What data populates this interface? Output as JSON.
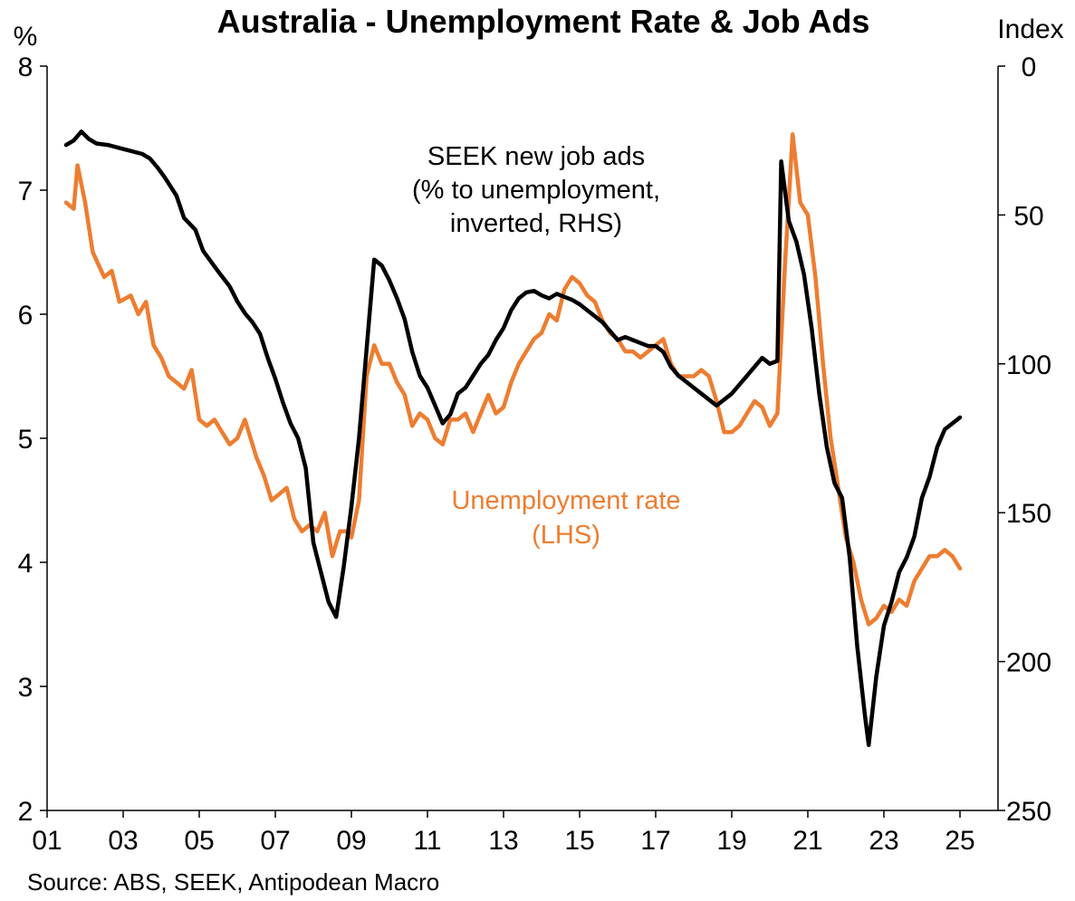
{
  "chart_data": {
    "type": "line",
    "title": "Australia - Unemployment Rate & Job Ads",
    "y_left_unit": "%",
    "y_right_unit": "Index",
    "source": "Source: ABS, SEEK, Antipodean Macro",
    "x_ticks": [
      "01",
      "03",
      "05",
      "07",
      "09",
      "11",
      "13",
      "15",
      "17",
      "19",
      "21",
      "23",
      "25"
    ],
    "x_range": [
      2001.0,
      2026.0
    ],
    "y_left": {
      "min": 2,
      "max": 8,
      "ticks": [
        2,
        3,
        4,
        5,
        6,
        7,
        8
      ]
    },
    "y_right": {
      "min": 0,
      "max": 250,
      "inverted": true,
      "ticks": [
        0,
        50,
        100,
        150,
        200,
        250
      ]
    },
    "annotations": {
      "seek": [
        "SEEK new job ads",
        "(% to unemployment,",
        "inverted, RHS)"
      ],
      "unemployment": [
        "Unemployment rate",
        "(LHS)"
      ]
    },
    "grid": false,
    "series": [
      {
        "name": "Unemployment rate (LHS)",
        "axis": "left",
        "color": "#ED7D31",
        "points": [
          [
            2001.5,
            6.9
          ],
          [
            2001.7,
            6.85
          ],
          [
            2001.8,
            7.2
          ],
          [
            2002.0,
            6.9
          ],
          [
            2002.2,
            6.5
          ],
          [
            2002.5,
            6.3
          ],
          [
            2002.7,
            6.35
          ],
          [
            2002.9,
            6.1
          ],
          [
            2003.2,
            6.15
          ],
          [
            2003.4,
            6.0
          ],
          [
            2003.6,
            6.1
          ],
          [
            2003.8,
            5.75
          ],
          [
            2004.0,
            5.65
          ],
          [
            2004.2,
            5.5
          ],
          [
            2004.4,
            5.45
          ],
          [
            2004.6,
            5.4
          ],
          [
            2004.8,
            5.55
          ],
          [
            2005.0,
            5.15
          ],
          [
            2005.2,
            5.1
          ],
          [
            2005.4,
            5.15
          ],
          [
            2005.6,
            5.05
          ],
          [
            2005.8,
            4.95
          ],
          [
            2006.0,
            5.0
          ],
          [
            2006.2,
            5.15
          ],
          [
            2006.5,
            4.85
          ],
          [
            2006.7,
            4.7
          ],
          [
            2006.9,
            4.5
          ],
          [
            2007.1,
            4.55
          ],
          [
            2007.3,
            4.6
          ],
          [
            2007.5,
            4.35
          ],
          [
            2007.7,
            4.25
          ],
          [
            2007.9,
            4.3
          ],
          [
            2008.1,
            4.25
          ],
          [
            2008.3,
            4.4
          ],
          [
            2008.5,
            4.05
          ],
          [
            2008.7,
            4.25
          ],
          [
            2008.9,
            4.25
          ],
          [
            2009.0,
            4.2
          ],
          [
            2009.2,
            4.5
          ],
          [
            2009.4,
            5.5
          ],
          [
            2009.6,
            5.75
          ],
          [
            2009.8,
            5.6
          ],
          [
            2010.0,
            5.6
          ],
          [
            2010.2,
            5.45
          ],
          [
            2010.4,
            5.35
          ],
          [
            2010.6,
            5.1
          ],
          [
            2010.8,
            5.2
          ],
          [
            2011.0,
            5.15
          ],
          [
            2011.2,
            5.0
          ],
          [
            2011.4,
            4.95
          ],
          [
            2011.6,
            5.15
          ],
          [
            2011.8,
            5.15
          ],
          [
            2012.0,
            5.2
          ],
          [
            2012.2,
            5.05
          ],
          [
            2012.4,
            5.2
          ],
          [
            2012.6,
            5.35
          ],
          [
            2012.8,
            5.2
          ],
          [
            2013.0,
            5.25
          ],
          [
            2013.2,
            5.45
          ],
          [
            2013.4,
            5.6
          ],
          [
            2013.6,
            5.7
          ],
          [
            2013.8,
            5.8
          ],
          [
            2014.0,
            5.85
          ],
          [
            2014.2,
            6.0
          ],
          [
            2014.4,
            5.95
          ],
          [
            2014.6,
            6.2
          ],
          [
            2014.8,
            6.3
          ],
          [
            2015.0,
            6.25
          ],
          [
            2015.2,
            6.15
          ],
          [
            2015.4,
            6.1
          ],
          [
            2015.6,
            5.95
          ],
          [
            2015.8,
            5.85
          ],
          [
            2016.0,
            5.8
          ],
          [
            2016.2,
            5.7
          ],
          [
            2016.4,
            5.7
          ],
          [
            2016.6,
            5.65
          ],
          [
            2016.8,
            5.7
          ],
          [
            2017.0,
            5.75
          ],
          [
            2017.2,
            5.8
          ],
          [
            2017.4,
            5.6
          ],
          [
            2017.6,
            5.5
          ],
          [
            2017.8,
            5.5
          ],
          [
            2018.0,
            5.5
          ],
          [
            2018.2,
            5.55
          ],
          [
            2018.4,
            5.5
          ],
          [
            2018.6,
            5.3
          ],
          [
            2018.8,
            5.05
          ],
          [
            2019.0,
            5.05
          ],
          [
            2019.2,
            5.1
          ],
          [
            2019.4,
            5.2
          ],
          [
            2019.6,
            5.3
          ],
          [
            2019.8,
            5.25
          ],
          [
            2020.0,
            5.1
          ],
          [
            2020.2,
            5.2
          ],
          [
            2020.4,
            6.4
          ],
          [
            2020.6,
            7.45
          ],
          [
            2020.8,
            6.9
          ],
          [
            2021.0,
            6.8
          ],
          [
            2021.2,
            6.3
          ],
          [
            2021.4,
            5.6
          ],
          [
            2021.6,
            5.0
          ],
          [
            2021.8,
            4.6
          ],
          [
            2022.0,
            4.2
          ],
          [
            2022.2,
            4.0
          ],
          [
            2022.4,
            3.7
          ],
          [
            2022.6,
            3.5
          ],
          [
            2022.8,
            3.55
          ],
          [
            2023.0,
            3.65
          ],
          [
            2023.2,
            3.6
          ],
          [
            2023.4,
            3.7
          ],
          [
            2023.6,
            3.65
          ],
          [
            2023.8,
            3.85
          ],
          [
            2024.0,
            3.95
          ],
          [
            2024.2,
            4.05
          ],
          [
            2024.4,
            4.05
          ],
          [
            2024.6,
            4.1
          ],
          [
            2024.8,
            4.05
          ],
          [
            2025.0,
            3.95
          ]
        ]
      },
      {
        "name": "SEEK new job ads (% to unemployment, inverted, RHS)",
        "axis": "right",
        "color": "#000000",
        "points": [
          [
            2001.5,
            26.5
          ],
          [
            2001.7,
            25.0
          ],
          [
            2001.9,
            22.0
          ],
          [
            2002.1,
            24.5
          ],
          [
            2002.3,
            26.0
          ],
          [
            2002.6,
            26.5
          ],
          [
            2002.9,
            27.5
          ],
          [
            2003.2,
            28.5
          ],
          [
            2003.5,
            29.5
          ],
          [
            2003.7,
            31.0
          ],
          [
            2003.9,
            34.0
          ],
          [
            2004.1,
            37.5
          ],
          [
            2004.4,
            43.5
          ],
          [
            2004.6,
            51.0
          ],
          [
            2004.9,
            55.0
          ],
          [
            2005.1,
            62.0
          ],
          [
            2005.3,
            65.5
          ],
          [
            2005.5,
            69.0
          ],
          [
            2005.8,
            74.0
          ],
          [
            2006.0,
            79.0
          ],
          [
            2006.2,
            83.0
          ],
          [
            2006.4,
            86.0
          ],
          [
            2006.6,
            90.0
          ],
          [
            2006.8,
            98.0
          ],
          [
            2007.0,
            105.0
          ],
          [
            2007.2,
            113.0
          ],
          [
            2007.4,
            120.0
          ],
          [
            2007.6,
            125.0
          ],
          [
            2007.8,
            135.0
          ],
          [
            2008.0,
            160.0
          ],
          [
            2008.2,
            170.0
          ],
          [
            2008.4,
            180.0
          ],
          [
            2008.6,
            185.0
          ],
          [
            2008.8,
            168.0
          ],
          [
            2009.0,
            148.0
          ],
          [
            2009.2,
            125.0
          ],
          [
            2009.4,
            95.0
          ],
          [
            2009.6,
            65.0
          ],
          [
            2009.8,
            67.0
          ],
          [
            2010.0,
            72.0
          ],
          [
            2010.2,
            78.0
          ],
          [
            2010.4,
            85.0
          ],
          [
            2010.6,
            96.0
          ],
          [
            2010.8,
            104.0
          ],
          [
            2011.0,
            108.0
          ],
          [
            2011.2,
            114.0
          ],
          [
            2011.4,
            120.0
          ],
          [
            2011.6,
            117.0
          ],
          [
            2011.8,
            110.0
          ],
          [
            2012.0,
            108.0
          ],
          [
            2012.2,
            104.0
          ],
          [
            2012.4,
            100.0
          ],
          [
            2012.6,
            97.0
          ],
          [
            2012.8,
            92.0
          ],
          [
            2013.0,
            88.0
          ],
          [
            2013.2,
            82.0
          ],
          [
            2013.4,
            78.0
          ],
          [
            2013.6,
            76.0
          ],
          [
            2013.8,
            75.5
          ],
          [
            2014.0,
            77.0
          ],
          [
            2014.2,
            78.0
          ],
          [
            2014.4,
            76.5
          ],
          [
            2014.6,
            77.5
          ],
          [
            2014.8,
            78.5
          ],
          [
            2015.0,
            80.0
          ],
          [
            2015.2,
            82.0
          ],
          [
            2015.4,
            84.0
          ],
          [
            2015.6,
            86.0
          ],
          [
            2015.8,
            89.0
          ],
          [
            2016.0,
            92.0
          ],
          [
            2016.2,
            91.0
          ],
          [
            2016.4,
            92.0
          ],
          [
            2016.6,
            93.0
          ],
          [
            2016.8,
            94.0
          ],
          [
            2017.0,
            94.0
          ],
          [
            2017.2,
            96.0
          ],
          [
            2017.4,
            101.0
          ],
          [
            2017.6,
            104.0
          ],
          [
            2017.8,
            106.0
          ],
          [
            2018.0,
            108.0
          ],
          [
            2018.2,
            110.0
          ],
          [
            2018.4,
            112.0
          ],
          [
            2018.6,
            114.0
          ],
          [
            2018.8,
            112.0
          ],
          [
            2019.0,
            110.0
          ],
          [
            2019.2,
            107.0
          ],
          [
            2019.4,
            104.0
          ],
          [
            2019.6,
            101.0
          ],
          [
            2019.8,
            98.0
          ],
          [
            2020.0,
            100.0
          ],
          [
            2020.2,
            99.0
          ],
          [
            2020.3,
            32.0
          ],
          [
            2020.5,
            52.0
          ],
          [
            2020.7,
            59.0
          ],
          [
            2020.9,
            70.0
          ],
          [
            2021.1,
            88.0
          ],
          [
            2021.3,
            110.0
          ],
          [
            2021.5,
            128.0
          ],
          [
            2021.7,
            140.0
          ],
          [
            2021.9,
            145.0
          ],
          [
            2022.1,
            165.0
          ],
          [
            2022.3,
            195.0
          ],
          [
            2022.5,
            218.0
          ],
          [
            2022.6,
            228.0
          ],
          [
            2022.8,
            205.0
          ],
          [
            2023.0,
            188.0
          ],
          [
            2023.2,
            180.0
          ],
          [
            2023.4,
            170.0
          ],
          [
            2023.6,
            165.0
          ],
          [
            2023.8,
            158.0
          ],
          [
            2024.0,
            145.0
          ],
          [
            2024.2,
            138.0
          ],
          [
            2024.4,
            128.0
          ],
          [
            2024.6,
            122.0
          ],
          [
            2024.8,
            120.0
          ],
          [
            2025.0,
            118.0
          ]
        ]
      }
    ]
  }
}
